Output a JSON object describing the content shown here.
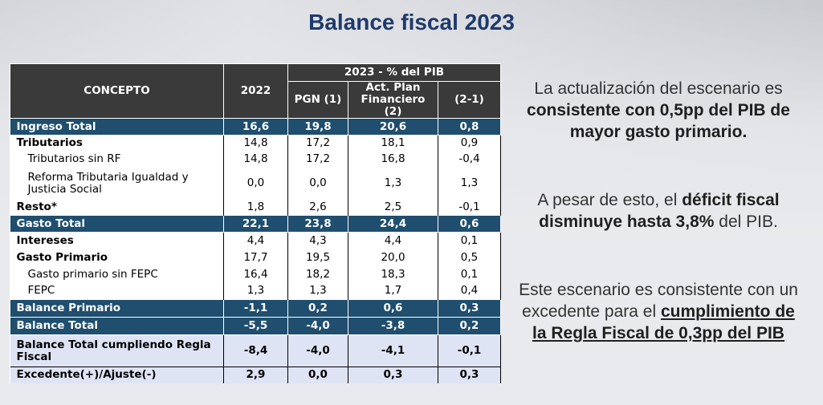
{
  "title": "Balance fiscal 2023",
  "table": {
    "header_concepto": "CONCEPTO",
    "header_2022": "2022",
    "header_group": "2023 - % del PIB",
    "header_pgn": "PGN (1)",
    "header_act": "Act. Plan Financiero (2)",
    "header_diff": "(2-1)",
    "rows": [
      {
        "label": "Ingreso Total",
        "v2022": "16,6",
        "pgn": "19,8",
        "act": "20,6",
        "diff": "0,8"
      },
      {
        "label": "Tributarios",
        "v2022": "14,8",
        "pgn": "17,2",
        "act": "18,1",
        "diff": "0,9"
      },
      {
        "label": "Tributarios sin RF",
        "v2022": "14,8",
        "pgn": "17,2",
        "act": "16,8",
        "diff": "-0,4"
      },
      {
        "label": "Reforma Tributaria Igualdad y Justicia Social",
        "v2022": "0,0",
        "pgn": "0,0",
        "act": "1,3",
        "diff": "1,3"
      },
      {
        "label": "Resto*",
        "v2022": "1,8",
        "pgn": "2,6",
        "act": "2,5",
        "diff": "-0,1"
      },
      {
        "label": "Gasto Total",
        "v2022": "22,1",
        "pgn": "23,8",
        "act": "24,4",
        "diff": "0,6"
      },
      {
        "label": "Intereses",
        "v2022": "4,4",
        "pgn": "4,3",
        "act": "4,4",
        "diff": "0,1"
      },
      {
        "label": "Gasto Primario",
        "v2022": "17,7",
        "pgn": "19,5",
        "act": "20,0",
        "diff": "0,5"
      },
      {
        "label": "Gasto primario sin FEPC",
        "v2022": "16,4",
        "pgn": "18,2",
        "act": "18,3",
        "diff": "0,1"
      },
      {
        "label": "FEPC",
        "v2022": "1,3",
        "pgn": "1,3",
        "act": "1,7",
        "diff": "0,4"
      },
      {
        "label": "Balance Primario",
        "v2022": "-1,1",
        "pgn": "0,2",
        "act": "0,6",
        "diff": "0,3"
      },
      {
        "label": "Balance Total",
        "v2022": "-5,5",
        "pgn": "-4,0",
        "act": "-3,8",
        "diff": "0,2"
      },
      {
        "label": "Balance Total cumpliendo Regla Fiscal",
        "v2022": "-8,4",
        "pgn": "-4,0",
        "act": "-4,1",
        "diff": "-0,1"
      },
      {
        "label": "Excedente(+)/Ajuste(-)",
        "v2022": "2,9",
        "pgn": "0,0",
        "act": "0,3",
        "diff": "0,3"
      }
    ]
  },
  "right_text": {
    "p1_pre": "La actualización del escenario es ",
    "p1_bold": "consistente con 0,5pp del PIB de mayor gasto primario.",
    "p2_pre": "A pesar de esto, el ",
    "p2_bold": "déficit fiscal disminuye hasta 3,8%",
    "p2_post": " del PIB.",
    "p3_pre": "Este escenario es consistente con un excedente para el ",
    "p3_underline": "cumplimiento de la Regla Fiscal de 0,3pp del PIB"
  },
  "colors": {
    "title": "#1f3a6b",
    "header_bg": "#3a3a3a",
    "highlight_row": "#1f4e6e",
    "lavender_row": "#dfe4f5"
  }
}
